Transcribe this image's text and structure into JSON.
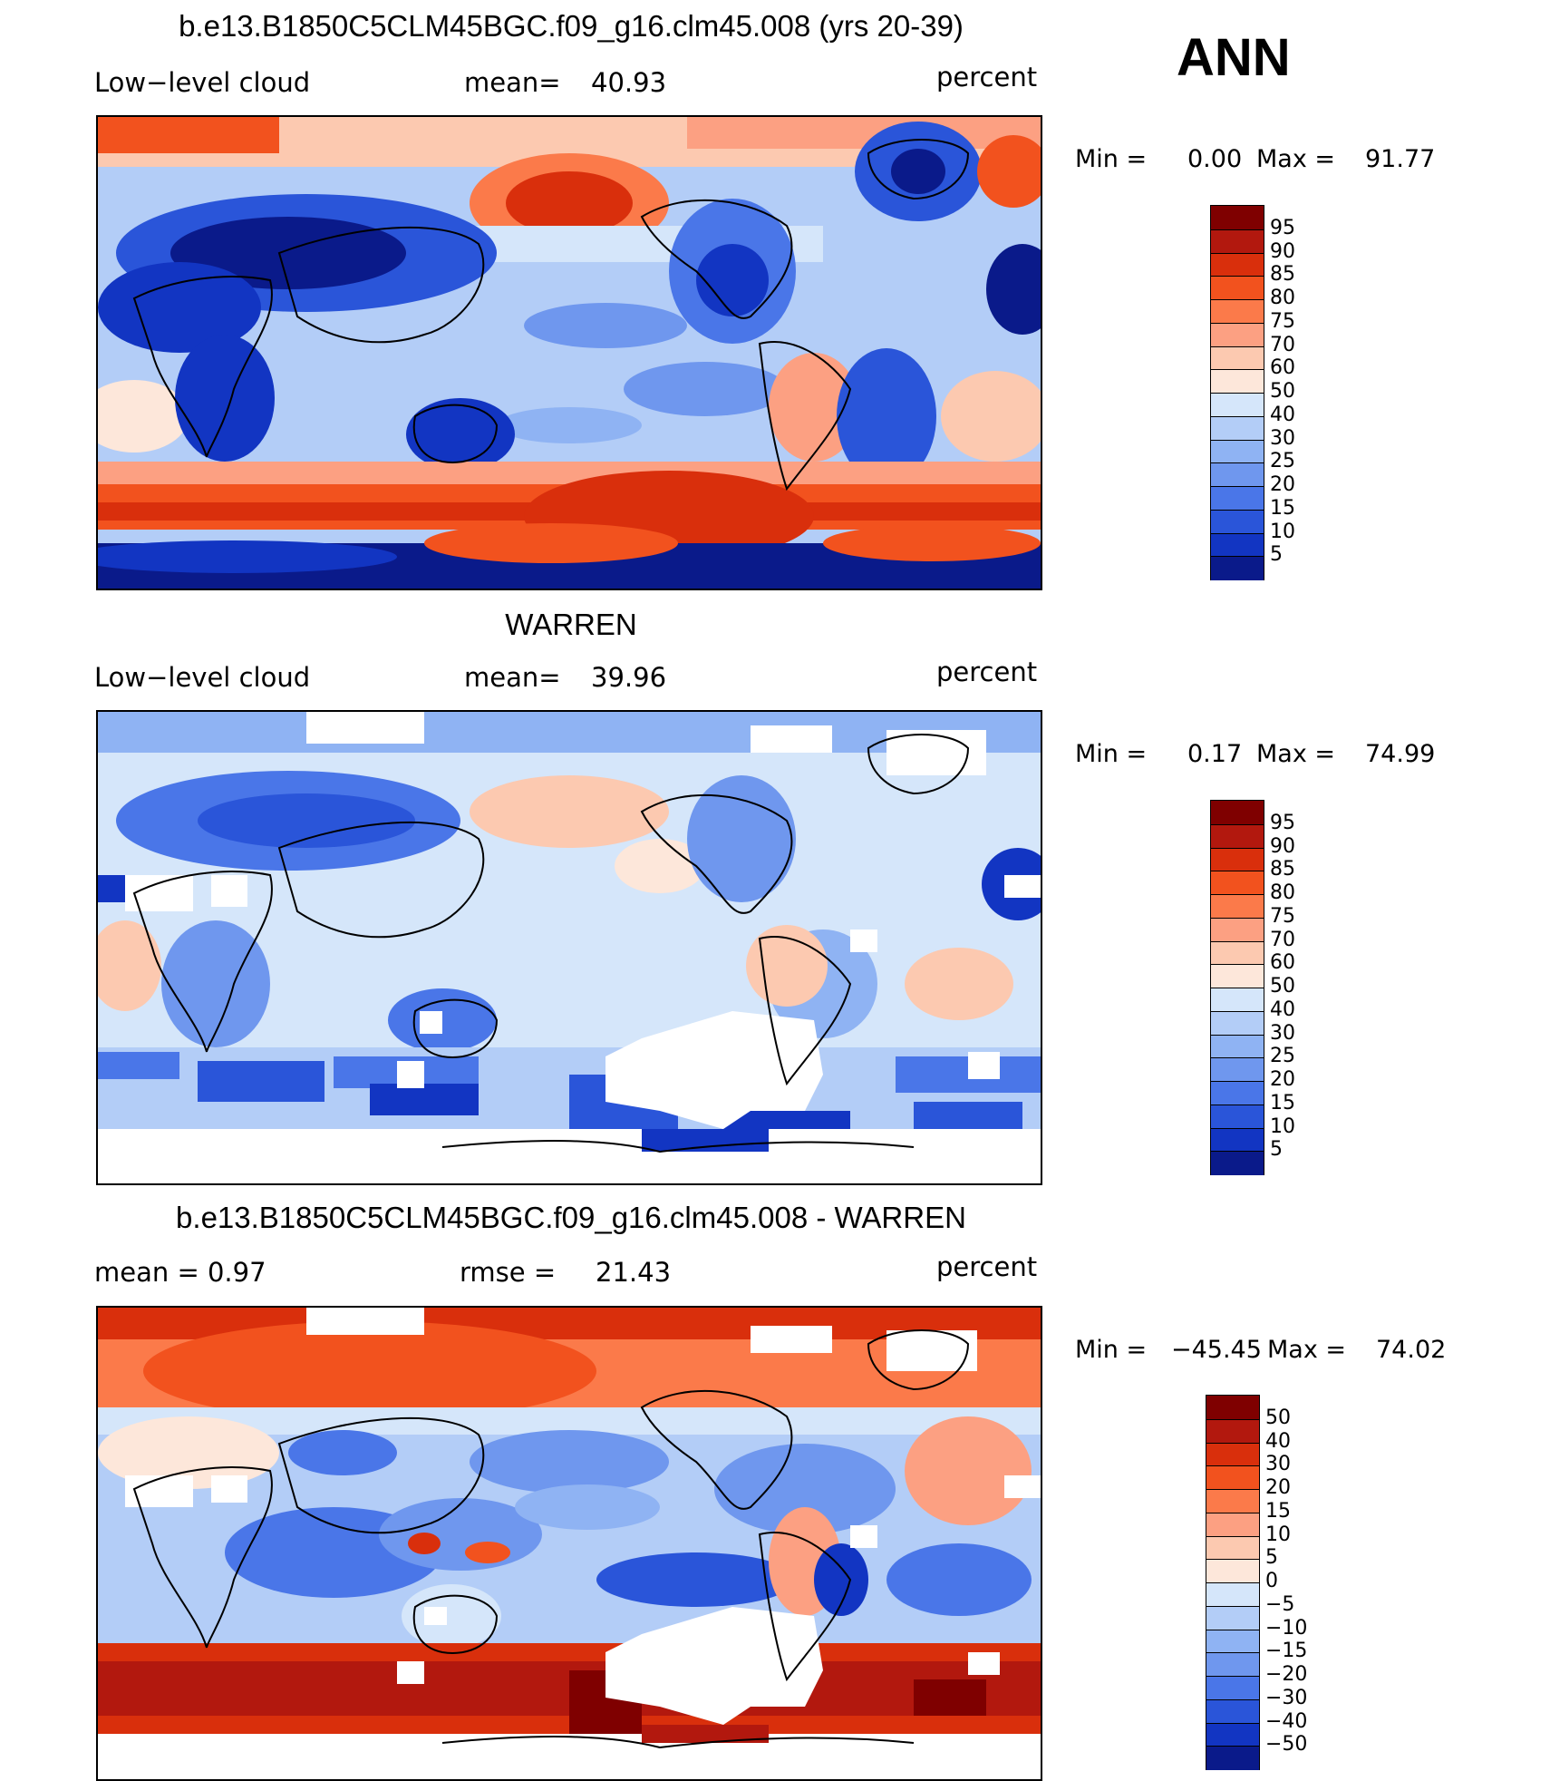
{
  "season": "ANN",
  "panels": [
    {
      "title": "b.e13.B1850C5CLM45BGC.f09_g16.clm45.008 (yrs 20-39)",
      "left_label": "Low−level cloud",
      "stat_label": "mean=",
      "stat_value": "40.93",
      "units": "percent",
      "min_label": "Min  =",
      "min_value": "0.00",
      "max_label": "Max  =",
      "max_value": "91.77",
      "colorbar": [
        "95",
        "90",
        "85",
        "80",
        "75",
        "70",
        "60",
        "50",
        "40",
        "30",
        "25",
        "20",
        "15",
        "10",
        "5"
      ]
    },
    {
      "title": "WARREN",
      "left_label": "Low−level cloud",
      "stat_label": "mean=",
      "stat_value": "39.96",
      "units": "percent",
      "min_label": "Min  =",
      "min_value": "0.17",
      "max_label": "Max  =",
      "max_value": "74.99",
      "colorbar": [
        "95",
        "90",
        "85",
        "80",
        "75",
        "70",
        "60",
        "50",
        "40",
        "30",
        "25",
        "20",
        "15",
        "10",
        "5"
      ]
    },
    {
      "title": "b.e13.B1850C5CLM45BGC.f09_g16.clm45.008 - WARREN",
      "left_label": "mean =     0.97",
      "stat_label": "rmse  =",
      "stat_value": "21.43",
      "units": "percent",
      "min_label": "Min  =",
      "min_value": "−45.45",
      "max_label": "Max  =",
      "max_value": "74.02",
      "colorbar": [
        "50",
        "40",
        "30",
        "20",
        "15",
        "10",
        "5",
        "0",
        "−5",
        "−10",
        "−15",
        "−20",
        "−30",
        "−40",
        "−50"
      ]
    }
  ],
  "palette": {
    "warm": [
      "#7f0000",
      "#b2180e",
      "#d92f0c",
      "#f2521e",
      "#fb7a4a",
      "#fca082",
      "#fcc9b0",
      "#fde7da"
    ],
    "cool": [
      "#d5e6fa",
      "#b3cdf7",
      "#8fb3f3",
      "#6f97ee",
      "#4a76e8",
      "#2a55d9",
      "#1235c2",
      "#0a1a8a"
    ]
  }
}
